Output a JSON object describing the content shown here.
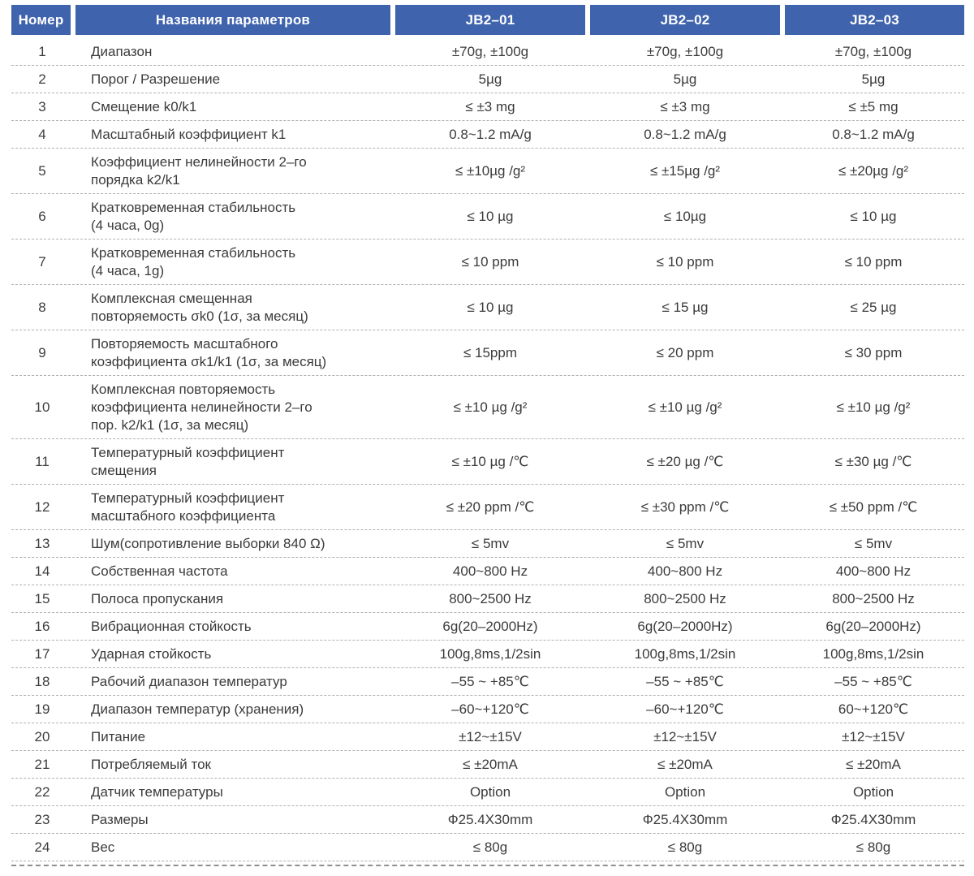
{
  "colors": {
    "header_bg": "#3F63AD",
    "header_text": "#FFFFFF",
    "body_text": "#3B3B3B",
    "divider": "#B0B0B0"
  },
  "table": {
    "columns": [
      "Номер",
      "Названия параметров",
      "JB2–01",
      "JB2–02",
      "JB2–03"
    ],
    "rows": [
      {
        "num": "1",
        "name": "Диапазон",
        "values": [
          "±70g, ±100g",
          "±70g, ±100g",
          "±70g, ±100g"
        ]
      },
      {
        "num": "2",
        "name": "Порог / Разрешение",
        "values": [
          "5µg",
          "5µg",
          "5µg"
        ]
      },
      {
        "num": "3",
        "name": "Смещение k0/k1",
        "values": [
          "≤ ±3 mg",
          "≤ ±3 mg",
          "≤ ±5 mg"
        ]
      },
      {
        "num": "4",
        "name": "Масштабный коэффициент k1",
        "values": [
          "0.8~1.2 mA/g",
          "0.8~1.2 mA/g",
          "0.8~1.2 mA/g"
        ]
      },
      {
        "num": "5",
        "name": "Коэффициент нелинейности 2–го\nпорядка k2/k1",
        "values": [
          "≤ ±10µg /g²",
          "≤ ±15µg /g²",
          "≤ ±20µg /g²"
        ]
      },
      {
        "num": "6",
        "name": "Кратковременная стабильность\n(4 часа, 0g)",
        "values": [
          "≤ 10 µg",
          "≤ 10µg",
          "≤ 10 µg"
        ]
      },
      {
        "num": "7",
        "name": "Кратковременная стабильность\n(4 часа, 1g)",
        "values": [
          "≤ 10 ppm",
          "≤ 10 ppm",
          "≤ 10 ppm"
        ]
      },
      {
        "num": "8",
        "name": "Комплексная смещенная\nповторяемость σk0 (1σ, за месяц)",
        "values": [
          "≤ 10 µg",
          "≤ 15 µg",
          "≤ 25 µg"
        ]
      },
      {
        "num": "9",
        "name": "Повторяемость масштабного\nкоэффициента σk1/k1 (1σ, за месяц)",
        "values": [
          "≤ 15ppm",
          "≤ 20 ppm",
          "≤ 30 ppm"
        ]
      },
      {
        "num": "10",
        "name": "Комплексная повторяемость\nкоэффициента нелинейности 2–го\nпор. k2/k1 (1σ, за месяц)",
        "values": [
          "≤ ±10 µg /g²",
          "≤ ±10 µg /g²",
          "≤ ±10 µg /g²"
        ]
      },
      {
        "num": "11",
        "name": "Температурный коэффициент\nсмещения",
        "values": [
          "≤ ±10 µg /℃",
          "≤ ±20 µg /℃",
          "≤ ±30 µg /℃"
        ]
      },
      {
        "num": "12",
        "name": "Температурный коэффициент\nмасштабного коэффициента",
        "values": [
          "≤ ±20 ppm /℃",
          "≤ ±30 ppm /℃",
          "≤ ±50 ppm /℃"
        ]
      },
      {
        "num": "13",
        "name": "Шум(сопротивление выборки 840 Ω)",
        "values": [
          "≤ 5mv",
          "≤ 5mv",
          "≤ 5mv"
        ]
      },
      {
        "num": "14",
        "name": "Собственная частота",
        "values": [
          "400~800 Hz",
          "400~800 Hz",
          "400~800 Hz"
        ]
      },
      {
        "num": "15",
        "name": "Полоса пропускания",
        "values": [
          "800~2500 Hz",
          "800~2500 Hz",
          "800~2500 Hz"
        ]
      },
      {
        "num": "16",
        "name": "Вибрационная стойкость",
        "values": [
          "6g(20–2000Hz)",
          "6g(20–2000Hz)",
          "6g(20–2000Hz)"
        ]
      },
      {
        "num": "17",
        "name": "Ударная стойкость",
        "values": [
          "100g,8ms,1/2sin",
          "100g,8ms,1/2sin",
          "100g,8ms,1/2sin"
        ]
      },
      {
        "num": "18",
        "name": "Рабочий диапазон температур",
        "values": [
          "–55 ~ +85℃",
          "–55 ~ +85℃",
          "–55 ~ +85℃"
        ]
      },
      {
        "num": "19",
        "name": "Диапазон температур (хранения)",
        "values": [
          "–60~+120℃",
          "–60~+120℃",
          "60~+120℃"
        ]
      },
      {
        "num": "20",
        "name": "Питание",
        "values": [
          "±12~±15V",
          "±12~±15V",
          "±12~±15V"
        ]
      },
      {
        "num": "21",
        "name": "Потребляемый ток",
        "values": [
          "≤ ±20mA",
          "≤ ±20mA",
          "≤ ±20mA"
        ]
      },
      {
        "num": "22",
        "name": "Датчик температуры",
        "values": [
          "Option",
          "Option",
          "Option"
        ]
      },
      {
        "num": "23",
        "name": "Размеры",
        "values": [
          "Ф25.4X30mm",
          "Ф25.4X30mm",
          "Ф25.4X30mm"
        ]
      },
      {
        "num": "24",
        "name": "Вес",
        "values": [
          "≤ 80g",
          "≤ 80g",
          "≤ 80g"
        ]
      }
    ]
  }
}
